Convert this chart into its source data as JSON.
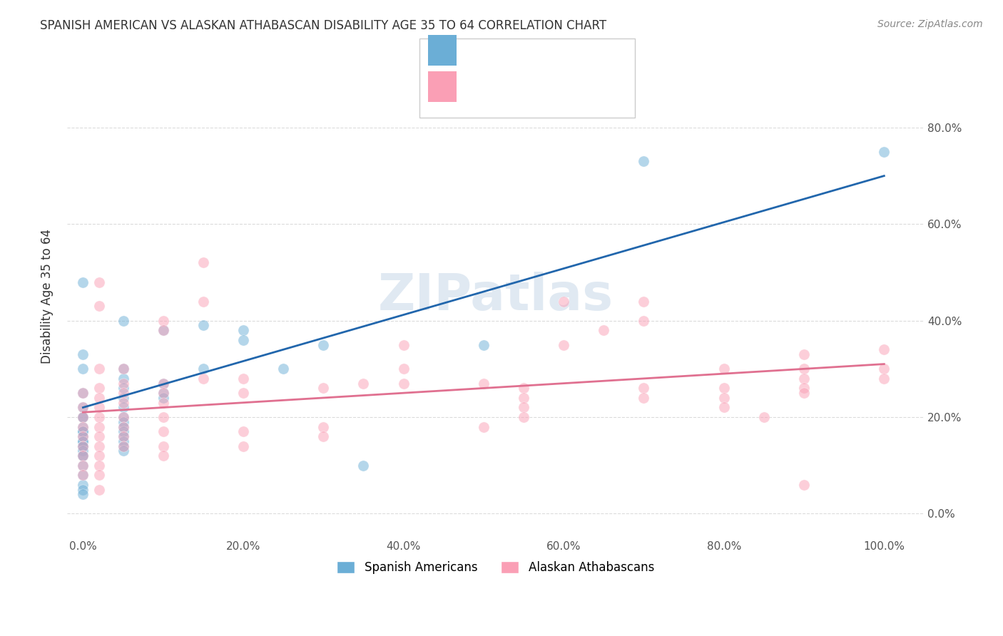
{
  "title": "SPANISH AMERICAN VS ALASKAN ATHABASCAN DISABILITY AGE 35 TO 64 CORRELATION CHART",
  "source": "Source: ZipAtlas.com",
  "xlabel_ticks": [
    "0.0%",
    "20.0%",
    "40.0%",
    "60.0%",
    "80.0%",
    "100.0%"
  ],
  "ylabel_ticks": [
    "0.0%",
    "20.0%",
    "40.0%",
    "60.0%",
    "80.0%"
  ],
  "ylabel": "Disability Age 35 to 64",
  "legend_labels": [
    "Spanish Americans",
    "Alaskan Athabascans"
  ],
  "blue_color": "#6baed6",
  "pink_color": "#fa9fb5",
  "blue_line_color": "#2166ac",
  "pink_line_color": "#e07090",
  "legend_R_color": "#4169e1",
  "scatter_alpha": 0.5,
  "blue_scatter": [
    [
      0.0,
      0.48
    ],
    [
      0.0,
      0.33
    ],
    [
      0.0,
      0.3
    ],
    [
      0.0,
      0.25
    ],
    [
      0.0,
      0.22
    ],
    [
      0.0,
      0.2
    ],
    [
      0.0,
      0.2
    ],
    [
      0.0,
      0.18
    ],
    [
      0.0,
      0.17
    ],
    [
      0.0,
      0.17
    ],
    [
      0.0,
      0.16
    ],
    [
      0.0,
      0.15
    ],
    [
      0.0,
      0.15
    ],
    [
      0.0,
      0.14
    ],
    [
      0.0,
      0.14
    ],
    [
      0.0,
      0.13
    ],
    [
      0.0,
      0.12
    ],
    [
      0.0,
      0.12
    ],
    [
      0.0,
      0.1
    ],
    [
      0.0,
      0.08
    ],
    [
      0.0,
      0.06
    ],
    [
      0.0,
      0.05
    ],
    [
      0.0,
      0.04
    ],
    [
      0.05,
      0.4
    ],
    [
      0.05,
      0.3
    ],
    [
      0.05,
      0.28
    ],
    [
      0.05,
      0.26
    ],
    [
      0.05,
      0.24
    ],
    [
      0.05,
      0.22
    ],
    [
      0.05,
      0.2
    ],
    [
      0.05,
      0.19
    ],
    [
      0.05,
      0.18
    ],
    [
      0.05,
      0.17
    ],
    [
      0.05,
      0.16
    ],
    [
      0.05,
      0.15
    ],
    [
      0.05,
      0.14
    ],
    [
      0.05,
      0.13
    ],
    [
      0.1,
      0.38
    ],
    [
      0.1,
      0.27
    ],
    [
      0.1,
      0.25
    ],
    [
      0.1,
      0.24
    ],
    [
      0.15,
      0.39
    ],
    [
      0.15,
      0.3
    ],
    [
      0.2,
      0.38
    ],
    [
      0.2,
      0.36
    ],
    [
      0.25,
      0.3
    ],
    [
      0.3,
      0.35
    ],
    [
      0.35,
      0.1
    ],
    [
      0.5,
      0.35
    ],
    [
      0.7,
      0.73
    ],
    [
      1.0,
      0.75
    ]
  ],
  "pink_scatter": [
    [
      0.0,
      0.25
    ],
    [
      0.0,
      0.22
    ],
    [
      0.0,
      0.2
    ],
    [
      0.0,
      0.18
    ],
    [
      0.0,
      0.16
    ],
    [
      0.0,
      0.14
    ],
    [
      0.0,
      0.12
    ],
    [
      0.0,
      0.1
    ],
    [
      0.0,
      0.08
    ],
    [
      0.02,
      0.48
    ],
    [
      0.02,
      0.43
    ],
    [
      0.02,
      0.3
    ],
    [
      0.02,
      0.26
    ],
    [
      0.02,
      0.24
    ],
    [
      0.02,
      0.22
    ],
    [
      0.02,
      0.2
    ],
    [
      0.02,
      0.18
    ],
    [
      0.02,
      0.16
    ],
    [
      0.02,
      0.14
    ],
    [
      0.02,
      0.12
    ],
    [
      0.02,
      0.1
    ],
    [
      0.02,
      0.08
    ],
    [
      0.02,
      0.05
    ],
    [
      0.05,
      0.3
    ],
    [
      0.05,
      0.27
    ],
    [
      0.05,
      0.25
    ],
    [
      0.05,
      0.23
    ],
    [
      0.05,
      0.2
    ],
    [
      0.05,
      0.18
    ],
    [
      0.05,
      0.16
    ],
    [
      0.05,
      0.14
    ],
    [
      0.1,
      0.4
    ],
    [
      0.1,
      0.38
    ],
    [
      0.1,
      0.27
    ],
    [
      0.1,
      0.25
    ],
    [
      0.1,
      0.23
    ],
    [
      0.1,
      0.2
    ],
    [
      0.1,
      0.17
    ],
    [
      0.1,
      0.14
    ],
    [
      0.1,
      0.12
    ],
    [
      0.15,
      0.52
    ],
    [
      0.15,
      0.44
    ],
    [
      0.15,
      0.28
    ],
    [
      0.2,
      0.28
    ],
    [
      0.2,
      0.25
    ],
    [
      0.2,
      0.17
    ],
    [
      0.2,
      0.14
    ],
    [
      0.3,
      0.26
    ],
    [
      0.3,
      0.18
    ],
    [
      0.3,
      0.16
    ],
    [
      0.35,
      0.27
    ],
    [
      0.4,
      0.35
    ],
    [
      0.4,
      0.3
    ],
    [
      0.4,
      0.27
    ],
    [
      0.5,
      0.27
    ],
    [
      0.5,
      0.18
    ],
    [
      0.55,
      0.26
    ],
    [
      0.55,
      0.24
    ],
    [
      0.55,
      0.22
    ],
    [
      0.55,
      0.2
    ],
    [
      0.6,
      0.44
    ],
    [
      0.6,
      0.35
    ],
    [
      0.65,
      0.38
    ],
    [
      0.7,
      0.44
    ],
    [
      0.7,
      0.4
    ],
    [
      0.7,
      0.26
    ],
    [
      0.7,
      0.24
    ],
    [
      0.8,
      0.3
    ],
    [
      0.8,
      0.26
    ],
    [
      0.8,
      0.24
    ],
    [
      0.8,
      0.22
    ],
    [
      0.85,
      0.2
    ],
    [
      0.9,
      0.33
    ],
    [
      0.9,
      0.3
    ],
    [
      0.9,
      0.28
    ],
    [
      0.9,
      0.26
    ],
    [
      0.9,
      0.25
    ],
    [
      1.0,
      0.34
    ],
    [
      1.0,
      0.3
    ],
    [
      1.0,
      0.28
    ],
    [
      0.9,
      0.06
    ]
  ],
  "blue_line": [
    [
      0.0,
      0.22
    ],
    [
      1.0,
      0.7
    ]
  ],
  "pink_line": [
    [
      0.0,
      0.21
    ],
    [
      1.0,
      0.31
    ]
  ],
  "xlim": [
    -0.02,
    1.05
  ],
  "ylim": [
    -0.05,
    0.95
  ],
  "watermark": "ZIPatlas",
  "background_color": "#ffffff",
  "grid_color": "#cccccc"
}
